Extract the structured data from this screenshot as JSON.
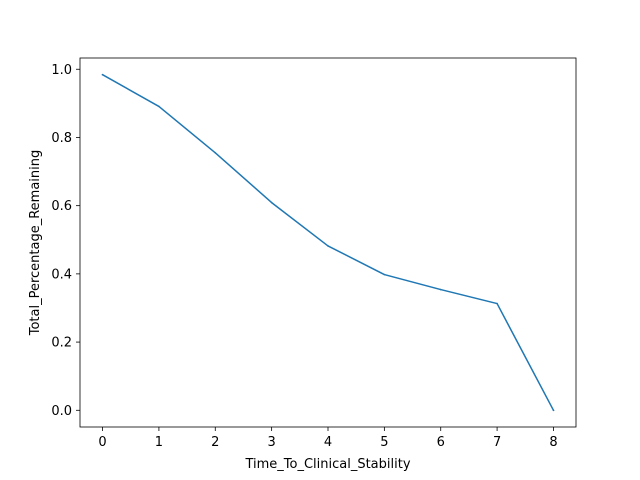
{
  "chart_data": {
    "type": "line",
    "title": "",
    "xlabel": "Time_To_Clinical_Stability",
    "ylabel": "Total_Percentage_Remaining",
    "x": [
      0,
      1,
      2,
      3,
      4,
      5,
      6,
      7,
      8
    ],
    "series": [
      {
        "values": [
          0.984,
          0.891,
          0.755,
          0.609,
          0.482,
          0.398,
          0.354,
          0.313,
          0.0
        ]
      }
    ],
    "xlim": [
      -0.4,
      8.4
    ],
    "ylim": [
      -0.049,
      1.033
    ],
    "xticks": [
      0,
      1,
      2,
      3,
      4,
      5,
      6,
      7,
      8
    ],
    "xtick_labels": [
      "0",
      "1",
      "2",
      "3",
      "4",
      "5",
      "6",
      "7",
      "8"
    ],
    "yticks": [
      0.0,
      0.2,
      0.4,
      0.6,
      0.8,
      1.0
    ],
    "ytick_labels": [
      "0.0",
      "0.2",
      "0.4",
      "0.6",
      "0.8",
      "1.0"
    ],
    "grid": false,
    "legend": "none",
    "line_color": "#1f77b4"
  }
}
